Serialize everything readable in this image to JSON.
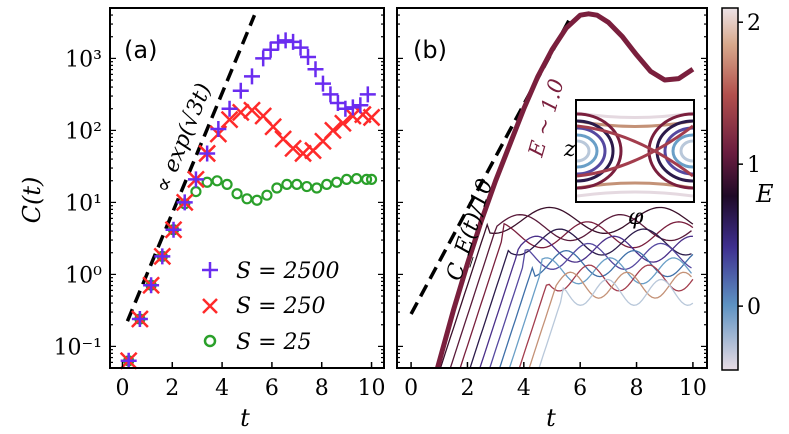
{
  "colors": {
    "s2500": "#6a2cf0",
    "s250": "#ff2a2a",
    "s25": "#2aa02a",
    "thick": "#7a1f3d",
    "axis": "#000000"
  },
  "chart_data": [
    {
      "id": "a",
      "type": "scatter",
      "panel_label": "(a)",
      "xlabel": "t",
      "ylabel": "C(t)",
      "yscale": "log",
      "xlim": [
        -0.5,
        10.5
      ],
      "ylim_log10": [
        -1.3,
        3.7
      ],
      "xticks": [
        0,
        2,
        4,
        6,
        8,
        10
      ],
      "xtick_labels": [
        "0",
        "2",
        "4",
        "6",
        "8",
        "10"
      ],
      "yticks_log10": [
        -1,
        0,
        1,
        2,
        3
      ],
      "ytick_labels": [
        "10⁻¹",
        "10⁰",
        "10¹",
        "10²",
        "10³"
      ],
      "annotation": "∝ exp(√3t)",
      "reference_line": {
        "x": [
          0.2,
          5.3
        ],
        "log10_y": [
          -0.65,
          3.6
        ],
        "style": "dashed"
      },
      "series": [
        {
          "name": "S = 2500",
          "marker": "plus",
          "x": [
            0.25,
            0.7,
            1.15,
            1.6,
            2.05,
            2.5,
            2.95,
            3.4,
            3.85,
            4.3,
            4.75,
            5.2,
            5.65,
            5.95,
            6.25,
            6.55,
            6.85,
            7.15,
            7.45,
            7.75,
            8.05,
            8.35,
            8.65,
            8.95,
            9.25,
            9.55,
            9.85
          ],
          "log10_y": [
            -1.2,
            -0.62,
            -0.15,
            0.25,
            0.62,
            1.0,
            1.32,
            1.68,
            2.02,
            2.3,
            2.55,
            2.75,
            3.0,
            3.12,
            3.22,
            3.25,
            3.23,
            3.15,
            3.02,
            2.85,
            2.65,
            2.5,
            2.38,
            2.3,
            2.32,
            2.35,
            2.5
          ]
        },
        {
          "name": "S = 250",
          "marker": "x",
          "x": [
            0.25,
            0.7,
            1.15,
            1.6,
            2.05,
            2.5,
            2.95,
            3.4,
            3.85,
            4.3,
            4.75,
            5.2,
            5.65,
            6.05,
            6.45,
            6.85,
            7.25,
            7.65,
            8.05,
            8.45,
            8.85,
            9.25,
            9.65,
            10.0
          ],
          "log10_y": [
            -1.2,
            -0.62,
            -0.15,
            0.25,
            0.62,
            1.0,
            1.32,
            1.68,
            1.95,
            2.15,
            2.25,
            2.28,
            2.2,
            2.05,
            1.88,
            1.75,
            1.68,
            1.72,
            1.85,
            2.0,
            2.1,
            2.2,
            2.22,
            2.18
          ]
        },
        {
          "name": "S = 25",
          "marker": "circle",
          "x": [
            0.25,
            0.7,
            1.15,
            1.6,
            2.05,
            2.5,
            2.95,
            3.4,
            3.8,
            4.2,
            4.6,
            5.0,
            5.4,
            5.8,
            6.2,
            6.6,
            7.0,
            7.4,
            7.8,
            8.2,
            8.6,
            9.0,
            9.4,
            9.8,
            10.0
          ],
          "log10_y": [
            -1.2,
            -0.62,
            -0.15,
            0.25,
            0.62,
            0.98,
            1.15,
            1.28,
            1.3,
            1.25,
            1.12,
            1.05,
            1.03,
            1.1,
            1.2,
            1.25,
            1.25,
            1.22,
            1.2,
            1.25,
            1.28,
            1.32,
            1.33,
            1.32,
            1.32
          ]
        }
      ]
    },
    {
      "id": "b",
      "type": "line",
      "panel_label": "(b)",
      "xlabel": "t",
      "ylabel": "",
      "yscale": "log",
      "xlim": [
        -0.5,
        10.5
      ],
      "ylim_log10": [
        -1.3,
        3.7
      ],
      "xticks": [
        0,
        2,
        4,
        6,
        8,
        10
      ],
      "xtick_labels": [
        "0",
        "2",
        "4",
        "6",
        "8",
        "10"
      ],
      "annotation_dashed": "C_E(t)/10",
      "annotation_curve": "E ~ 1.0",
      "reference_line": {
        "x": [
          0.0,
          5.7
        ],
        "log10_y": [
          -0.55,
          3.6
        ],
        "style": "dashed"
      },
      "main_curve": {
        "name": "E ~ 1.0",
        "x": [
          0.9,
          1.5,
          2.0,
          2.5,
          3.0,
          3.5,
          4.0,
          4.5,
          5.0,
          5.5,
          6.0,
          6.3,
          6.6,
          7.0,
          7.5,
          8.0,
          8.5,
          9.0,
          9.5,
          10.0
        ],
        "log10_y": [
          -1.35,
          -0.5,
          0.15,
          0.75,
          1.3,
          1.8,
          2.3,
          2.75,
          3.12,
          3.42,
          3.6,
          3.62,
          3.6,
          3.5,
          3.3,
          3.05,
          2.82,
          2.7,
          2.72,
          2.85
        ]
      },
      "inset": {
        "xlabel": "φ",
        "ylabel": "z"
      },
      "colorbar": {
        "label": "E",
        "ticks": [
          0,
          1,
          2
        ],
        "tick_labels": [
          "0",
          "1",
          "2"
        ],
        "range": [
          -0.45,
          2.1
        ]
      }
    }
  ]
}
